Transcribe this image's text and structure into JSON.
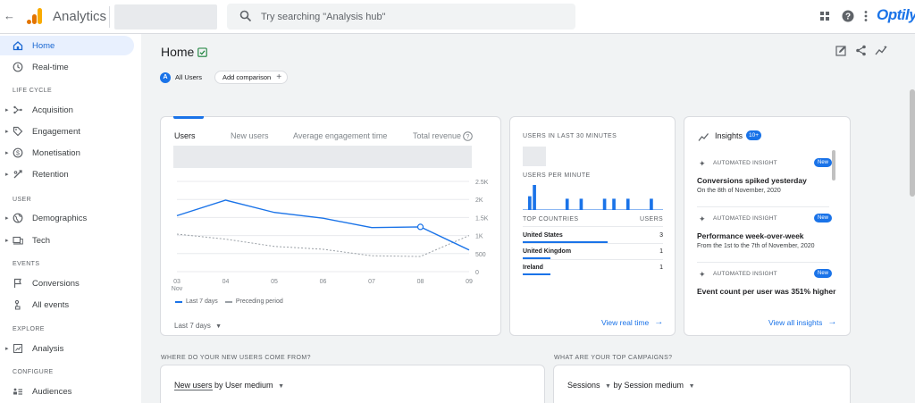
{
  "app": {
    "title": "Analytics",
    "brand": "Optily",
    "search_placeholder": "Try searching \"Analysis hub\""
  },
  "sidebar": {
    "items": [
      {
        "label": "Home",
        "icon": "home-icon",
        "active": true
      },
      {
        "label": "Real-time",
        "icon": "clock-icon"
      },
      {
        "section": "LIFE CYCLE"
      },
      {
        "label": "Acquisition",
        "icon": "acquisition-icon"
      },
      {
        "label": "Engagement",
        "icon": "tag-icon"
      },
      {
        "label": "Monetisation",
        "icon": "dollar-icon"
      },
      {
        "label": "Retention",
        "icon": "retention-icon"
      },
      {
        "section": "USER"
      },
      {
        "label": "Demographics",
        "icon": "globe-icon"
      },
      {
        "label": "Tech",
        "icon": "devices-icon"
      },
      {
        "section": "EVENTS"
      },
      {
        "label": "Conversions",
        "icon": "flag-icon"
      },
      {
        "label": "All events",
        "icon": "touch-icon"
      },
      {
        "section": "EXPLORE"
      },
      {
        "label": "Analysis",
        "icon": "analysis-icon"
      },
      {
        "section": "CONFIGURE"
      },
      {
        "label": "Audiences",
        "icon": "audiences-icon"
      }
    ]
  },
  "header": {
    "page_title": "Home",
    "user_chip": "All Users",
    "user_chip_avatar": "A",
    "add_comparison": "Add comparison"
  },
  "overview_card": {
    "tabs": [
      "Users",
      "New users",
      "Average engagement time",
      "Total revenue"
    ],
    "legend_current": "Last 7 days",
    "legend_previous": "Preceding period",
    "range_select": "Last 7 days"
  },
  "chart_data": {
    "type": "line",
    "x": [
      "03",
      "04",
      "05",
      "06",
      "07",
      "08",
      "09"
    ],
    "x_sublabel": "Nov",
    "y_ticks": [
      "2.5K",
      "2K",
      "1.5K",
      "1K",
      "500",
      "0"
    ],
    "ylim": [
      0,
      2500
    ],
    "series": [
      {
        "name": "Last 7 days",
        "values": [
          1550,
          1980,
          1640,
          1480,
          1220,
          1240,
          600
        ],
        "color": "#1a73e8",
        "dashed": false
      },
      {
        "name": "Preceding period",
        "values": [
          1040,
          900,
          700,
          620,
          440,
          420,
          1000
        ],
        "color": "#9aa0a6",
        "dashed": true
      }
    ],
    "highlight_index": 5
  },
  "realtime_card": {
    "heading": "USERS IN LAST 30 MINUTES",
    "per_minute_heading": "USERS PER MINUTE",
    "per_minute_bars": [
      0,
      1,
      1,
      0,
      0,
      0,
      0,
      0,
      0,
      1,
      0,
      0,
      1,
      0,
      0,
      0,
      0,
      1,
      0,
      1,
      0,
      0,
      1,
      0,
      0,
      0,
      0,
      1,
      0,
      0
    ],
    "per_minute_bar_values": [
      0,
      0.55,
      1.0,
      0,
      0,
      0,
      0,
      0,
      0,
      0.45,
      0,
      0,
      0.45,
      0,
      0,
      0,
      0,
      0.45,
      0,
      0.45,
      0,
      0,
      0.45,
      0,
      0,
      0,
      0,
      0.45,
      0,
      0
    ],
    "countries_heading": "TOP COUNTRIES",
    "users_heading": "USERS",
    "countries": [
      {
        "name": "United States",
        "value": "3",
        "share": 1.0
      },
      {
        "name": "United Kingdom",
        "value": "1",
        "share": 0.33
      },
      {
        "name": "Ireland",
        "value": "1",
        "share": 0.33
      }
    ],
    "link": "View real time"
  },
  "insights_card": {
    "title": "Insights",
    "count": "10+",
    "items": [
      {
        "type": "AUTOMATED INSIGHT",
        "badge": "New",
        "headline": "Conversions spiked yesterday",
        "sub": "On the 8th of November, 2020"
      },
      {
        "type": "AUTOMATED INSIGHT",
        "badge": "New",
        "headline": "Performance week-over-week",
        "sub": "From the 1st to the 7th of November, 2020"
      },
      {
        "type": "AUTOMATED INSIGHT",
        "badge": "New",
        "headline": "Event count per user was 351% higher",
        "sub": ""
      }
    ],
    "link": "View all insights"
  },
  "bottom": {
    "q1": "WHERE DO YOUR NEW USERS COME FROM?",
    "q2": "WHAT ARE YOUR TOP CAMPAIGNS?",
    "dd1_metric": "New users",
    "dd1_rest": "by User medium",
    "dd2_metric": "Sessions",
    "dd2_rest": "by Session medium"
  }
}
